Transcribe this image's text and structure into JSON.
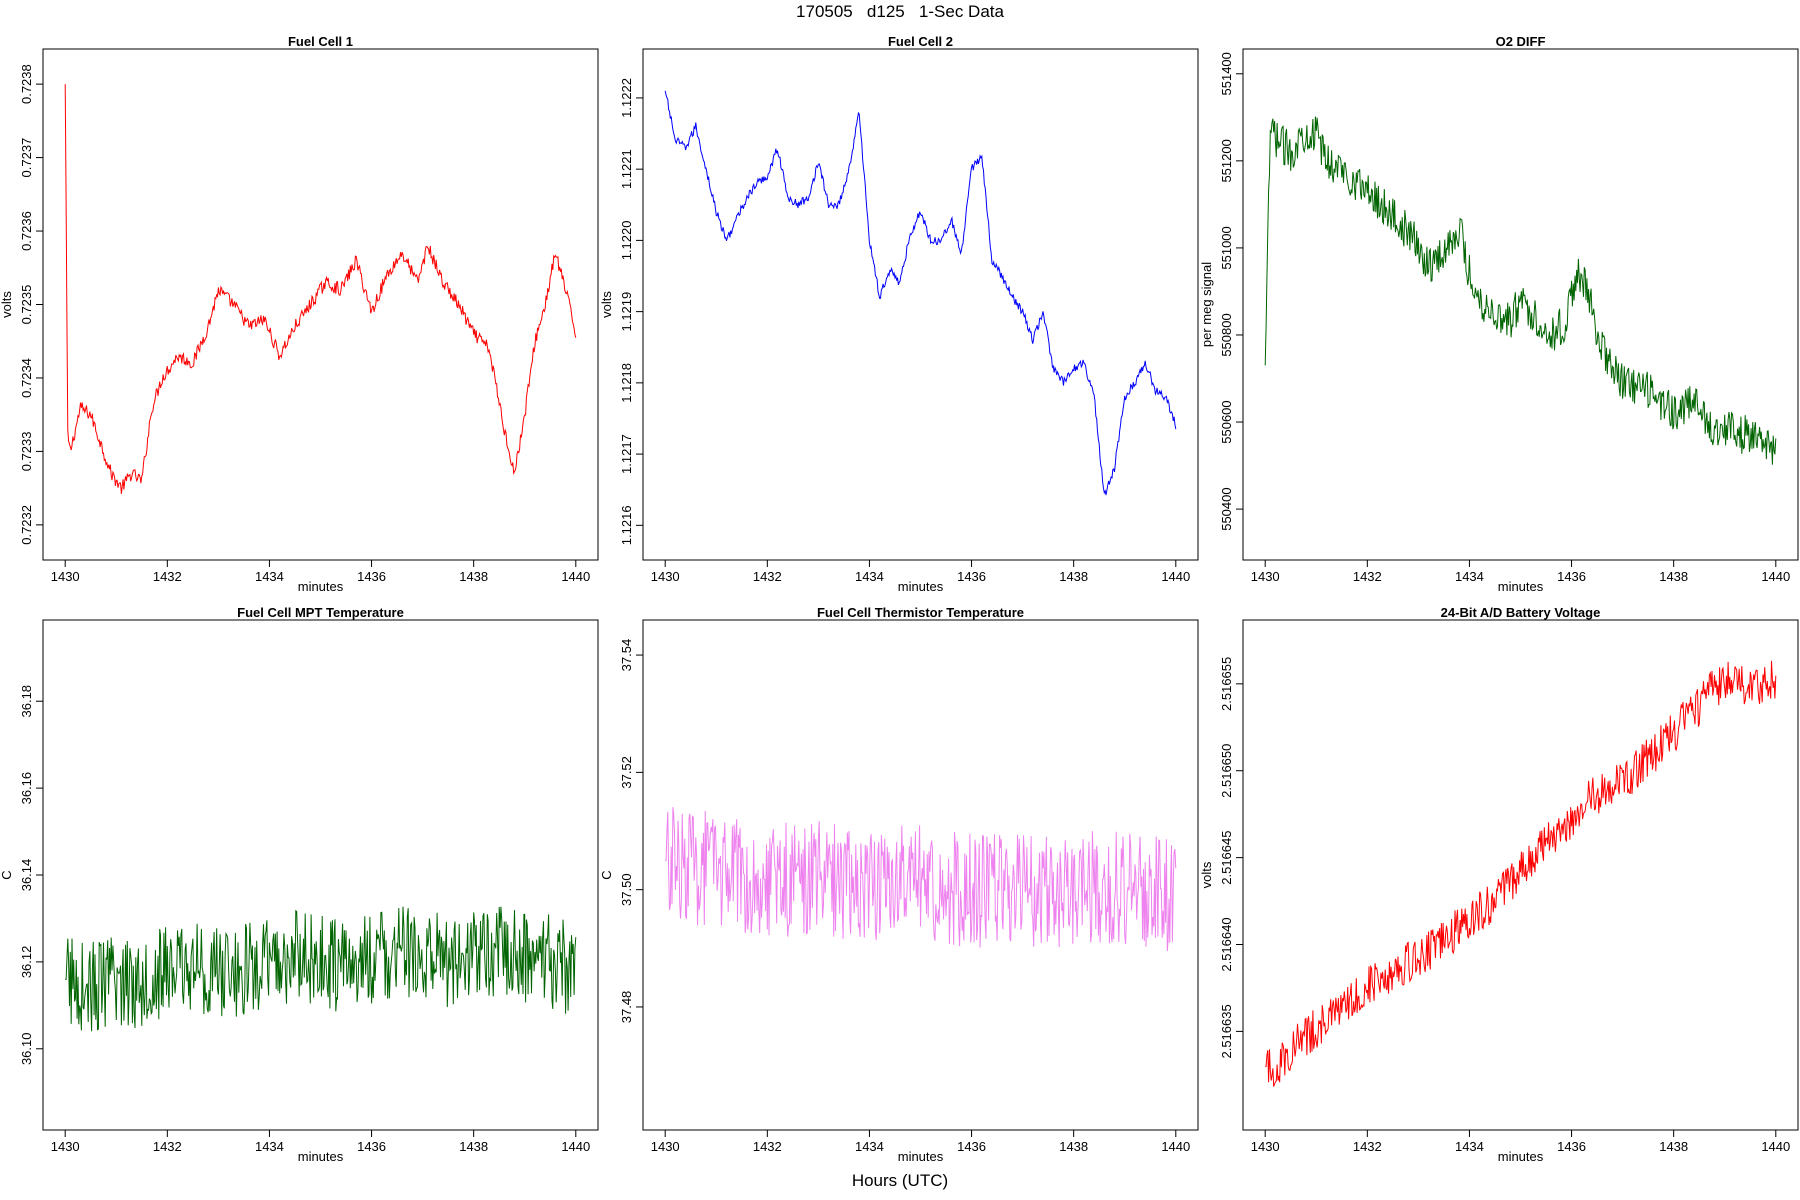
{
  "page_title": "170505   d125   1-Sec Data",
  "x_super_label": "Hours (UTC)",
  "chart_data": [
    {
      "type": "line",
      "title": "Fuel Cell 1",
      "xlabel": "minutes",
      "ylabel": "volts",
      "color": "#ff0000",
      "xlim": [
        1430,
        1440
      ],
      "ylim": [
        0.72318,
        0.72382
      ],
      "xticks": [
        "1430",
        "1432",
        "1434",
        "1436",
        "1438",
        "1440"
      ],
      "yticks": [
        "0.7232",
        "0.7233",
        "0.7234",
        "0.7235",
        "0.7236",
        "0.7237",
        "0.7238"
      ],
      "series": [
        {
          "x": [
            1430.0,
            1430.05,
            1430.1,
            1430.3,
            1430.5,
            1430.7,
            1430.9,
            1431.1,
            1431.3,
            1431.5,
            1431.7,
            1431.9,
            1432.2,
            1432.5,
            1432.8,
            1433.0,
            1433.3,
            1433.6,
            1433.9,
            1434.2,
            1434.5,
            1434.8,
            1435.1,
            1435.4,
            1435.7,
            1436.0,
            1436.3,
            1436.6,
            1436.9,
            1437.1,
            1437.4,
            1437.7,
            1438.0,
            1438.3,
            1438.6,
            1438.8,
            1439.0,
            1439.2,
            1439.4,
            1439.6,
            1439.8,
            1440.0
          ],
          "y": [
            0.7238,
            0.72332,
            0.7233,
            0.72336,
            0.72335,
            0.72331,
            0.72327,
            0.72325,
            0.72327,
            0.72326,
            0.72336,
            0.7234,
            0.72343,
            0.72342,
            0.72347,
            0.72352,
            0.7235,
            0.72347,
            0.72348,
            0.72343,
            0.72347,
            0.7235,
            0.72353,
            0.72352,
            0.72356,
            0.72349,
            0.72354,
            0.72357,
            0.72353,
            0.72358,
            0.72353,
            0.7235,
            0.72346,
            0.72344,
            0.72333,
            0.72327,
            0.72335,
            0.72345,
            0.7235,
            0.72357,
            0.72352,
            0.72346
          ]
        }
      ]
    },
    {
      "type": "line",
      "title": "Fuel Cell 2",
      "xlabel": "minutes",
      "ylabel": "volts",
      "color": "#0000ff",
      "xlim": [
        1430,
        1440
      ],
      "ylim": [
        1.12158,
        1.12224
      ],
      "xticks": [
        "1430",
        "1432",
        "1434",
        "1436",
        "1438",
        "1440"
      ],
      "yticks": [
        "1.1216",
        "1.1217",
        "1.1218",
        "1.1219",
        "1.1220",
        "1.1221",
        "1.1222"
      ],
      "series": [
        {
          "x": [
            1430.0,
            1430.2,
            1430.4,
            1430.6,
            1430.8,
            1431.0,
            1431.2,
            1431.4,
            1431.6,
            1431.8,
            1432.0,
            1432.2,
            1432.4,
            1432.6,
            1432.8,
            1433.0,
            1433.2,
            1433.4,
            1433.6,
            1433.8,
            1434.0,
            1434.2,
            1434.4,
            1434.6,
            1434.8,
            1435.0,
            1435.2,
            1435.4,
            1435.6,
            1435.8,
            1436.0,
            1436.2,
            1436.4,
            1436.6,
            1436.8,
            1437.0,
            1437.2,
            1437.4,
            1437.6,
            1437.8,
            1438.0,
            1438.2,
            1438.4,
            1438.6,
            1438.8,
            1439.0,
            1439.2,
            1439.4,
            1439.6,
            1439.8,
            1440.0
          ],
          "y": [
            1.12221,
            1.12214,
            1.12213,
            1.12216,
            1.1221,
            1.12204,
            1.122,
            1.12203,
            1.12206,
            1.12208,
            1.12209,
            1.12213,
            1.12206,
            1.12205,
            1.12206,
            1.12211,
            1.12205,
            1.12205,
            1.1221,
            1.12218,
            1.122,
            1.12192,
            1.12196,
            1.12194,
            1.12201,
            1.12204,
            1.122,
            1.122,
            1.12203,
            1.12198,
            1.1221,
            1.12212,
            1.12197,
            1.12195,
            1.12192,
            1.1219,
            1.12186,
            1.1219,
            1.12182,
            1.1218,
            1.12182,
            1.12183,
            1.12178,
            1.12164,
            1.12168,
            1.12178,
            1.1218,
            1.12183,
            1.12179,
            1.12178,
            1.12174
          ]
        }
      ]
    },
    {
      "type": "line",
      "title": "O2 DIFF",
      "xlabel": "minutes",
      "ylabel": "per meg signal",
      "color": "#006400",
      "xlim": [
        1430,
        1440
      ],
      "ylim": [
        550330,
        551410
      ],
      "xticks": [
        "1430",
        "1432",
        "1434",
        "1436",
        "1438",
        "1440"
      ],
      "yticks": [
        "550400",
        "550600",
        "550800",
        "551000",
        "551200",
        "551400"
      ],
      "series": [
        {
          "x": [
            1430.0,
            1430.05,
            1430.1,
            1430.3,
            1430.5,
            1430.8,
            1431.0,
            1431.2,
            1431.5,
            1431.8,
            1432.0,
            1432.3,
            1432.6,
            1432.9,
            1433.2,
            1433.5,
            1433.8,
            1434.0,
            1434.2,
            1434.5,
            1434.8,
            1435.0,
            1435.3,
            1435.6,
            1435.9,
            1436.1,
            1436.3,
            1436.6,
            1436.9,
            1437.2,
            1437.5,
            1437.8,
            1438.1,
            1438.4,
            1438.7,
            1439.0,
            1439.3,
            1439.6,
            1439.8,
            1440.0
          ],
          "y": [
            550730,
            551000,
            551270,
            551240,
            551220,
            551270,
            551260,
            551200,
            551180,
            551150,
            551130,
            551100,
            551060,
            551020,
            550960,
            550990,
            551050,
            550940,
            550880,
            550850,
            550830,
            550880,
            550840,
            550800,
            550830,
            550950,
            550900,
            550770,
            550700,
            550680,
            550670,
            550640,
            550620,
            550650,
            550590,
            550590,
            550570,
            550580,
            550540,
            550520
          ]
        }
      ]
    },
    {
      "type": "line",
      "title": "Fuel Cell MPT Temperature",
      "xlabel": "minutes",
      "ylabel": "C",
      "color": "#006400",
      "xlim": [
        1430,
        1440
      ],
      "ylim": [
        36.086,
        36.194
      ],
      "xticks": [
        "1430",
        "1432",
        "1434",
        "1436",
        "1438",
        "1440"
      ],
      "yticks": [
        "36.10",
        "36.12",
        "36.14",
        "36.16",
        "36.18"
      ],
      "series": [
        {
          "x": [
            1430.0,
            1430.5,
            1431.0,
            1431.5,
            1432.0,
            1432.5,
            1433.0,
            1433.5,
            1434.0,
            1434.5,
            1435.0,
            1435.5,
            1436.0,
            1436.5,
            1437.0,
            1437.5,
            1438.0,
            1438.5,
            1439.0,
            1439.5,
            1440.0
          ],
          "y": [
            36.116,
            36.114,
            36.115,
            36.116,
            36.118,
            36.119,
            36.117,
            36.118,
            36.119,
            36.121,
            36.12,
            36.119,
            36.121,
            36.122,
            36.121,
            36.12,
            36.122,
            36.123,
            36.121,
            36.12,
            36.118
          ]
        }
      ]
    },
    {
      "type": "line",
      "title": "Fuel Cell Thermistor Temperature",
      "xlabel": "minutes",
      "ylabel": "C",
      "color": "#ee82ee",
      "xlim": [
        1430,
        1440
      ],
      "ylim": [
        37.4625,
        37.5425
      ],
      "xticks": [
        "1430",
        "1432",
        "1434",
        "1436",
        "1438",
        "1440"
      ],
      "yticks": [
        "37.48",
        "37.50",
        "37.52",
        "37.54"
      ],
      "series": [
        {
          "x": [
            1430.0,
            1431.0,
            1432.0,
            1433.0,
            1434.0,
            1435.0,
            1436.0,
            1437.0,
            1438.0,
            1439.0,
            1440.0
          ],
          "y": [
            37.505,
            37.503,
            37.502,
            37.502,
            37.501,
            37.501,
            37.5,
            37.5,
            37.5,
            37.5,
            37.499
          ]
        }
      ]
    },
    {
      "type": "line",
      "title": "24-Bit A/D Battery Voltage",
      "xlabel": "minutes",
      "ylabel": "volts",
      "color": "#ff0000",
      "xlim": [
        1430,
        1440
      ],
      "ylim": [
        2.5166305,
        2.5166575
      ],
      "xticks": [
        "1430",
        "1432",
        "1434",
        "1436",
        "1438",
        "1440"
      ],
      "yticks": [
        "2.516635",
        "2.516640",
        "2.516645",
        "2.516650",
        "2.516655"
      ],
      "series": [
        {
          "x": [
            1430.0,
            1430.2,
            1430.5,
            1431.0,
            1431.5,
            1432.0,
            1432.5,
            1433.0,
            1433.5,
            1434.0,
            1434.5,
            1435.0,
            1435.5,
            1436.0,
            1436.5,
            1437.0,
            1437.5,
            1438.0,
            1438.5,
            1439.0,
            1439.5,
            1440.0
          ],
          "y": [
            2.516633,
            2.5166328,
            2.516634,
            2.5166352,
            2.5166362,
            2.5166377,
            2.5166385,
            2.5166393,
            2.5166402,
            2.5166415,
            2.5166425,
            2.5166443,
            2.5166458,
            2.5166473,
            2.5166487,
            2.5166493,
            2.5166507,
            2.5166522,
            2.5166538,
            2.5166553,
            2.5166548,
            2.5166552
          ]
        }
      ]
    }
  ]
}
